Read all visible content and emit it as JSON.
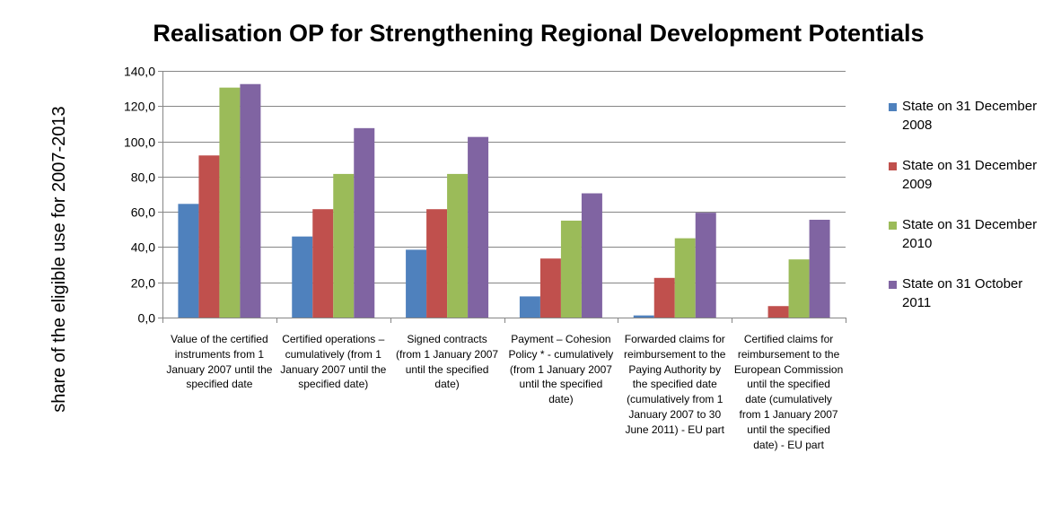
{
  "chart_data": {
    "type": "bar",
    "title": "Realisation OP for Strengthening Regional Development Potentials",
    "xlabel": "",
    "ylabel": "share of the eligible use for 2007-2013",
    "ylim": [
      0,
      140
    ],
    "yticks": [
      "0,0",
      "20,0",
      "40,0",
      "60,0",
      "80,0",
      "100,0",
      "120,0",
      "140,0"
    ],
    "ytick_values": [
      0,
      20,
      40,
      60,
      80,
      100,
      120,
      140
    ],
    "grid": true,
    "legend_position": "right",
    "categories": [
      "Value of the certified instruments from 1 January 2007 until the specified date",
      "Certified operations – cumulatively (from 1 January 2007 until the specified date)",
      "Signed contracts (from 1 January 2007 until the specified date)",
      "Payment – Cohesion Policy * - cumulatively (from 1 January 2007 until the specified date)",
      "Forwarded claims for reimbursement to the Paying Authority by the specified date (cumulatively from 1 January 2007 to 30 June 2011) - EU part",
      "Certified claims for reimbursement to the European Commission until the specified date (cumulatively from 1 January 2007 until the specified date) - EU part"
    ],
    "category_lines": [
      [
        "Value of the certified",
        "instruments from 1",
        "January 2007 until the",
        "specified date"
      ],
      [
        "Certified operations –",
        "cumulatively (from 1",
        "January 2007 until the",
        "specified date)"
      ],
      [
        "Signed contracts",
        "(from 1 January 2007",
        "until the specified",
        "date)"
      ],
      [
        "Payment – Cohesion",
        "Policy * - cumulatively",
        "(from 1 January 2007",
        "until the specified",
        "date)"
      ],
      [
        "Forwarded claims for",
        "reimbursement to the",
        "Paying Authority by",
        "the specified date",
        "(cumulatively from 1",
        "January 2007 to 30",
        "June 2011) - EU part"
      ],
      [
        "Certified claims for",
        "reimbursement to the",
        "European Commission",
        "until the specified",
        "date (cumulatively",
        "from 1 January 2007",
        "until the specified",
        "date) - EU part"
      ]
    ],
    "series": [
      {
        "name": "State on 31 December 2008",
        "name_lines": [
          "State on 31 December",
          "2008"
        ],
        "color": "#4F81BD",
        "values": [
          64.5,
          46.0,
          38.5,
          12.0,
          1.2,
          0.0
        ]
      },
      {
        "name": "State on 31 December 2009",
        "name_lines": [
          "State on 31 December",
          "2009"
        ],
        "color": "#C0504D",
        "values": [
          92.0,
          61.5,
          61.5,
          33.5,
          22.5,
          6.5
        ]
      },
      {
        "name": "State on 31 December 2010",
        "name_lines": [
          "State on 31 December",
          "2010"
        ],
        "color": "#9BBB59",
        "values": [
          130.5,
          81.5,
          81.5,
          55.0,
          45.0,
          33.0
        ]
      },
      {
        "name": "State on 31 October 2011",
        "name_lines": [
          "State on 31 October",
          "2011"
        ],
        "color": "#8064A2",
        "values": [
          132.5,
          107.5,
          102.5,
          70.5,
          59.5,
          55.5
        ]
      }
    ]
  }
}
